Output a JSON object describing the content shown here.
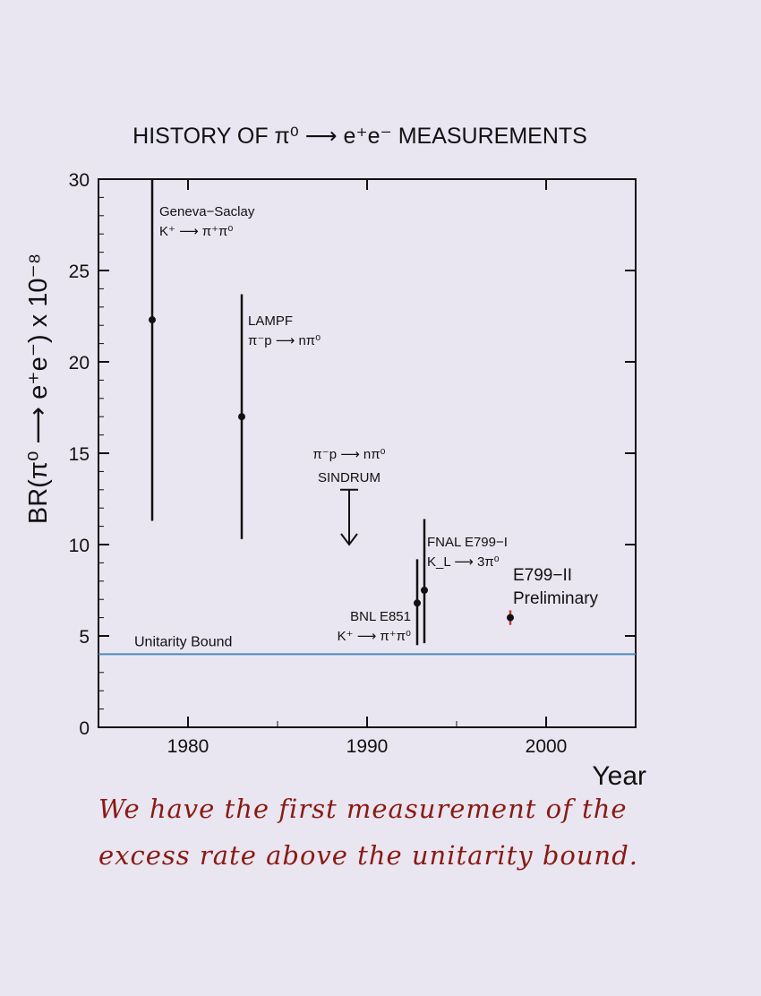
{
  "chart_data": {
    "type": "scatter",
    "title": "HISTORY OF π⁰ ⟶ e⁺e⁻ MEASUREMENTS",
    "xlabel": "Year",
    "ylabel": "BR(π⁰ ⟶ e⁺e⁻) x 10⁻⁸",
    "xlim": [
      1975,
      2005
    ],
    "ylim": [
      0,
      30
    ],
    "x_ticks": [
      1980,
      1990,
      2000
    ],
    "y_ticks": [
      0,
      5,
      10,
      15,
      20,
      25,
      30
    ],
    "points": [
      {
        "x": 1978,
        "y": 22.3,
        "low": 11.3,
        "high": 30.0,
        "labels": [
          "Geneva−Saclay",
          "K⁺ ⟶ π⁺π⁰"
        ]
      },
      {
        "x": 1983,
        "y": 17.0,
        "low": 10.3,
        "high": 23.7,
        "labels": [
          "LAMPF",
          "π⁻p ⟶ nπ⁰"
        ]
      },
      {
        "x": 1992.8,
        "y": 6.8,
        "low": 4.5,
        "high": 9.2,
        "labels": [
          "BNL E851",
          "K⁺ ⟶ π⁺π⁰"
        ]
      },
      {
        "x": 1993.2,
        "y": 7.5,
        "low": 4.6,
        "high": 11.4,
        "labels": [
          "FNAL E799−I",
          "K_L ⟶ 3π⁰"
        ]
      },
      {
        "x": 1998,
        "y": 6.0,
        "low": 5.6,
        "high": 6.4,
        "labels": [
          "E799−II",
          "Preliminary"
        ]
      }
    ],
    "upper_limit": {
      "x": 1989,
      "y": 13.0,
      "to": 10.0,
      "labels": [
        "π⁻p ⟶ nπ⁰",
        "SINDRUM"
      ]
    },
    "reference_line": {
      "y": 4.0,
      "label": "Unitarity Bound",
      "color": "#4a8ab8"
    },
    "colors": {
      "points": "#111111",
      "preliminary_error": "#c0392b"
    }
  },
  "annotation": {
    "line1": "We have the first measurement of the",
    "line2": "excess rate above the unitarity bound."
  }
}
